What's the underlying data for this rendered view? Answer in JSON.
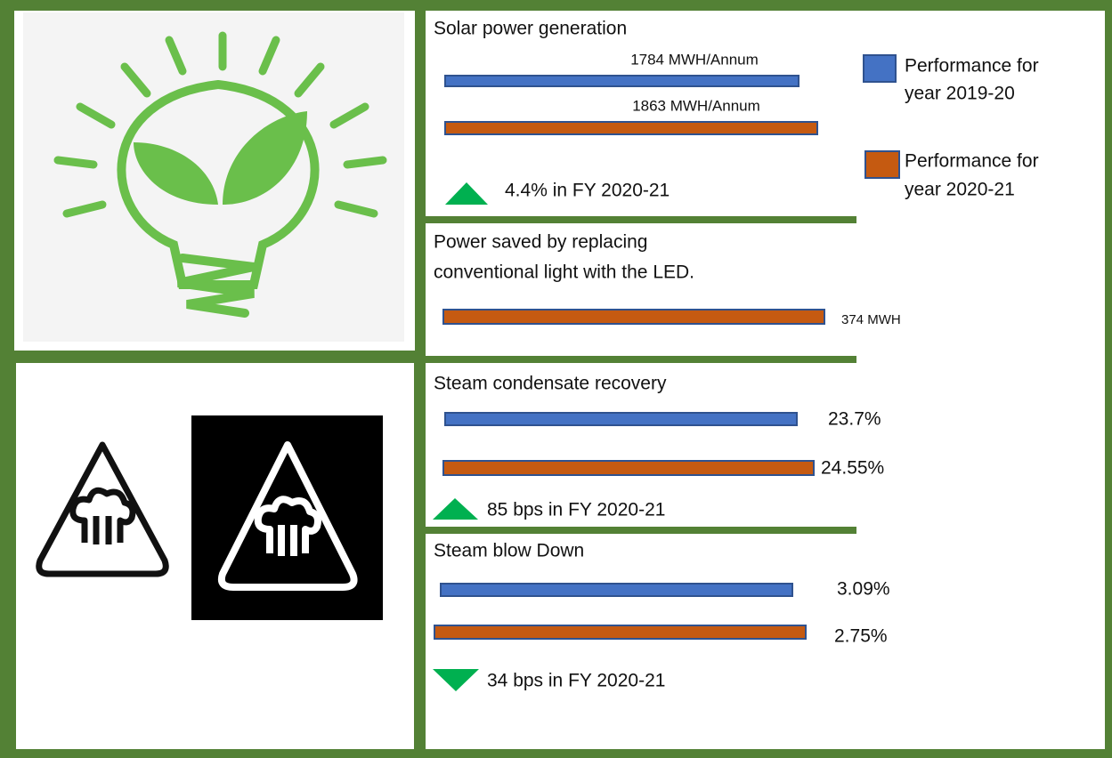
{
  "solar": {
    "title": "Solar power generation",
    "value_2019": "1784 MWH/Annum",
    "value_2020": "1863 MWH/Annum",
    "change": "4.4% in FY 2020-21"
  },
  "legend": [
    {
      "line1": "Performance for",
      "line2": "year 2019-20"
    },
    {
      "line1": "Performance for",
      "line2": "year 2020-21"
    }
  ],
  "led": {
    "title_line1": "Power saved by replacing",
    "title_line2": "conventional light with the LED.",
    "value": "374 MWH"
  },
  "condensate": {
    "title": "Steam condensate recovery",
    "value_2019": "23.7%",
    "value_2020": "24.55%",
    "change": "85 bps in FY 2020-21"
  },
  "blowdown": {
    "title": "Steam blow Down",
    "value_2019": "3.09%",
    "value_2020": "2.75%",
    "change": "34 bps in FY 2020-21"
  }
}
